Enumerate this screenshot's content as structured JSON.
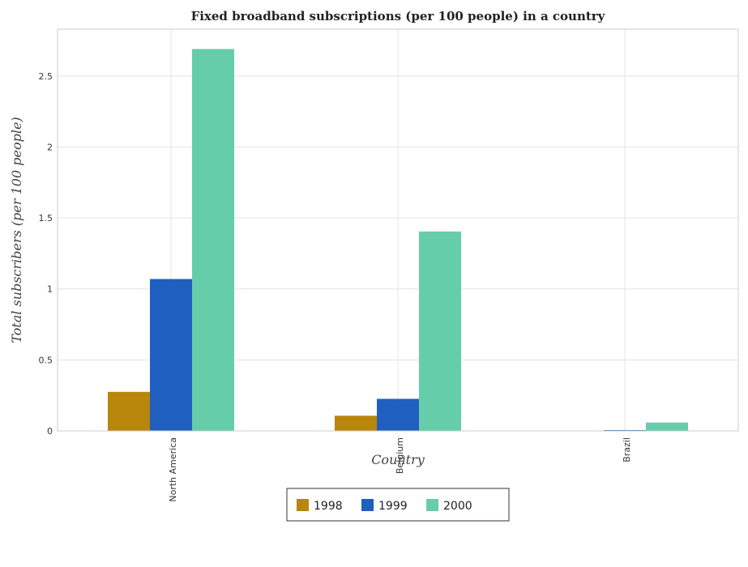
{
  "chart_data": {
    "type": "bar",
    "title": "Fixed broadband subscriptions (per 100 people) in a country",
    "xlabel": "Country",
    "ylabel": "Total subscribers (per 100 people)",
    "categories": [
      "North America",
      "Belgium",
      "Brazil"
    ],
    "series": [
      {
        "name": "1998",
        "color": "#b8860b",
        "values": [
          0.275,
          0.107,
          0.0
        ]
      },
      {
        "name": "1999",
        "color": "#1f5fbf",
        "values": [
          1.07,
          0.226,
          0.006
        ]
      },
      {
        "name": "2000",
        "color": "#66cdaa",
        "values": [
          2.69,
          1.405,
          0.059
        ]
      }
    ],
    "ylim": [
      0,
      2.83
    ],
    "yticks": [
      "0",
      "0.5",
      "1",
      "1.5",
      "2",
      "2.5"
    ],
    "ytick_values": [
      0,
      0.5,
      1,
      1.5,
      2,
      2.5
    ],
    "grid": true,
    "legend_position": "bottom-center"
  }
}
